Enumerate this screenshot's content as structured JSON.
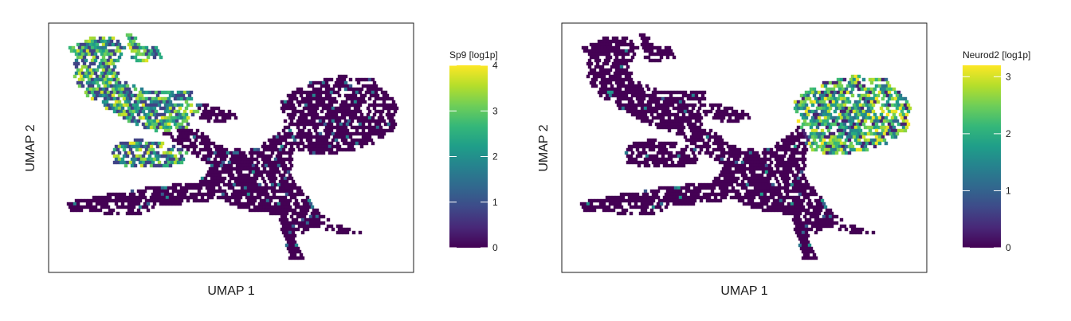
{
  "chart_data": [
    {
      "type": "hexbin",
      "xlabel": "UMAP 1",
      "ylabel": "UMAP 2",
      "legend_title": "Sp9 [log1p]",
      "colormap": "viridis",
      "color_range": [
        0,
        4
      ],
      "color_ticks": [
        "0",
        "1",
        "2",
        "3",
        "4"
      ],
      "legend_position": "right",
      "grid": false,
      "high_expression_regions": [
        "upper-left branches",
        "left-middle branch"
      ]
    },
    {
      "type": "hexbin",
      "xlabel": "UMAP 1",
      "ylabel": "UMAP 2",
      "legend_title": "Neurod2 [log1p]",
      "colormap": "viridis",
      "color_range": [
        0,
        3.2
      ],
      "color_ticks": [
        "0",
        "1",
        "2",
        "3"
      ],
      "legend_position": "right",
      "grid": false,
      "high_expression_regions": [
        "upper-right lobe"
      ]
    }
  ],
  "colors": {
    "viridis": [
      "#440154",
      "#482878",
      "#3e4a89",
      "#31688e",
      "#26828e",
      "#1f9e89",
      "#35b779",
      "#6ece58",
      "#b5de2b",
      "#fde725"
    ],
    "frame": "#1a1a1a"
  }
}
